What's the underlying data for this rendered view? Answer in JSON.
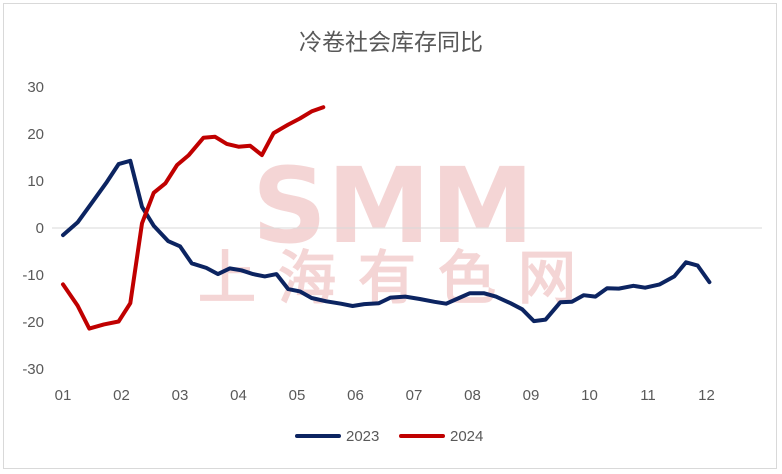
{
  "chart_data": {
    "type": "line",
    "title": "冷卷社会库存同比",
    "ylim": [
      -30,
      30
    ],
    "yticks": [
      30,
      20,
      10,
      0,
      -10,
      -20,
      -30
    ],
    "xlim": [
      1,
      12.8
    ],
    "xticks": [
      "01",
      "02",
      "03",
      "04",
      "05",
      "06",
      "07",
      "08",
      "09",
      "10",
      "11",
      "12"
    ],
    "legend_position": "bottom",
    "grid": false,
    "series": [
      {
        "name": "2023",
        "color": "#0c2461",
        "points": [
          [
            1.0,
            -1.5
          ],
          [
            1.25,
            1.2
          ],
          [
            1.5,
            5.5
          ],
          [
            1.75,
            9.8
          ],
          [
            1.95,
            13.6
          ],
          [
            2.15,
            14.3
          ],
          [
            2.35,
            4.5
          ],
          [
            2.55,
            0.5
          ],
          [
            2.8,
            -2.8
          ],
          [
            3.0,
            -3.9
          ],
          [
            3.2,
            -7.5
          ],
          [
            3.45,
            -8.5
          ],
          [
            3.65,
            -9.8
          ],
          [
            3.85,
            -8.6
          ],
          [
            4.05,
            -9.0
          ],
          [
            4.25,
            -9.8
          ],
          [
            4.45,
            -10.3
          ],
          [
            4.65,
            -9.8
          ],
          [
            4.85,
            -13.0
          ],
          [
            5.05,
            -13.5
          ],
          [
            5.25,
            -14.9
          ],
          [
            5.5,
            -15.6
          ],
          [
            5.75,
            -16.1
          ],
          [
            5.95,
            -16.6
          ],
          [
            6.15,
            -16.2
          ],
          [
            6.4,
            -16.0
          ],
          [
            6.6,
            -14.8
          ],
          [
            6.85,
            -14.6
          ],
          [
            7.1,
            -15.1
          ],
          [
            7.35,
            -15.7
          ],
          [
            7.55,
            -16.1
          ],
          [
            7.75,
            -15.0
          ],
          [
            7.95,
            -13.9
          ],
          [
            8.2,
            -13.9
          ],
          [
            8.4,
            -14.6
          ],
          [
            8.65,
            -16.0
          ],
          [
            8.85,
            -17.3
          ],
          [
            9.05,
            -19.8
          ],
          [
            9.25,
            -19.5
          ],
          [
            9.5,
            -15.8
          ],
          [
            9.7,
            -15.7
          ],
          [
            9.9,
            -14.3
          ],
          [
            10.1,
            -14.6
          ],
          [
            10.3,
            -12.8
          ],
          [
            10.5,
            -12.9
          ],
          [
            10.75,
            -12.3
          ],
          [
            10.95,
            -12.7
          ],
          [
            11.2,
            -12.0
          ],
          [
            11.45,
            -10.3
          ],
          [
            11.65,
            -7.3
          ],
          [
            11.85,
            -8.0
          ],
          [
            12.05,
            -11.5
          ]
        ]
      },
      {
        "name": "2024",
        "color": "#c00000",
        "points": [
          [
            1.0,
            -12.0
          ],
          [
            1.25,
            -16.5
          ],
          [
            1.45,
            -21.4
          ],
          [
            1.7,
            -20.5
          ],
          [
            1.95,
            -19.9
          ],
          [
            2.15,
            -16.0
          ],
          [
            2.35,
            1.0
          ],
          [
            2.55,
            7.5
          ],
          [
            2.75,
            9.5
          ],
          [
            2.95,
            13.4
          ],
          [
            3.15,
            15.5
          ],
          [
            3.4,
            19.2
          ],
          [
            3.6,
            19.4
          ],
          [
            3.8,
            17.9
          ],
          [
            4.0,
            17.3
          ],
          [
            4.2,
            17.5
          ],
          [
            4.4,
            15.5
          ],
          [
            4.6,
            20.2
          ],
          [
            4.85,
            22.0
          ],
          [
            5.05,
            23.3
          ],
          [
            5.25,
            24.8
          ],
          [
            5.45,
            25.7
          ]
        ]
      }
    ]
  },
  "watermark": {
    "line1": "SMM",
    "line2": "上海有色网"
  }
}
